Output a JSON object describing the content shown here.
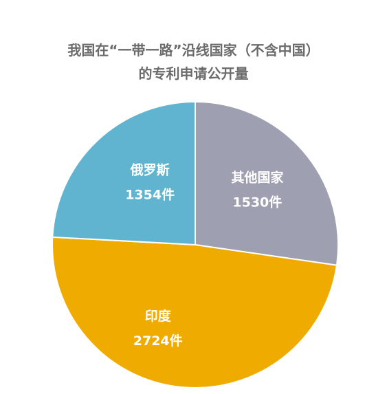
{
  "chart_data": {
    "type": "pie",
    "title_lines": [
      "我国在“一带一路”沿线国家（不含中国）",
      "的专利申请公开量"
    ],
    "slices": [
      {
        "name": "其他国家",
        "value": 1530,
        "value_label": "1530件",
        "color": "#9ea0b2"
      },
      {
        "name": "印度",
        "value": 2724,
        "value_label": "2724件",
        "color": "#f0ab00"
      },
      {
        "name": "俄罗斯",
        "value": 1354,
        "value_label": "1354件",
        "color": "#61b4cf"
      }
    ],
    "start_angle_deg": 0,
    "direction": "clockwise",
    "legend": "none"
  }
}
